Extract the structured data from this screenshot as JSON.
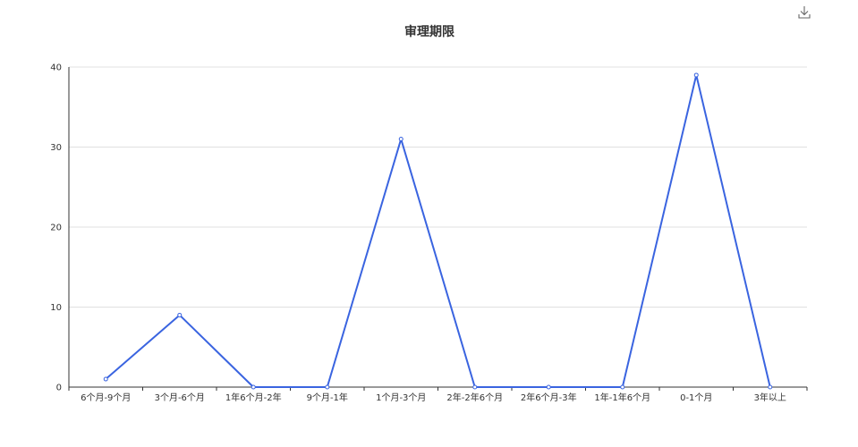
{
  "toolbar": {
    "download_icon": "download-icon"
  },
  "chart_data": {
    "type": "line",
    "title": "审理期限",
    "xlabel": "",
    "ylabel": "",
    "categories": [
      "6个月-9个月",
      "3个月-6个月",
      "1年6个月-2年",
      "9个月-1年",
      "1个月-3个月",
      "2年-2年6个月",
      "2年6个月-3年",
      "1年-1年6个月",
      "0-1个月",
      "3年以上"
    ],
    "series": [
      {
        "values": [
          1,
          9,
          0,
          0,
          31,
          0,
          0,
          0,
          39,
          0
        ]
      }
    ],
    "ylim": [
      0,
      40
    ],
    "yticks": [
      0,
      10,
      20,
      30,
      40
    ],
    "grid": true,
    "colors": {
      "line": "#3a64e0",
      "grid": "#e0e0e0",
      "axis": "#333333"
    }
  }
}
